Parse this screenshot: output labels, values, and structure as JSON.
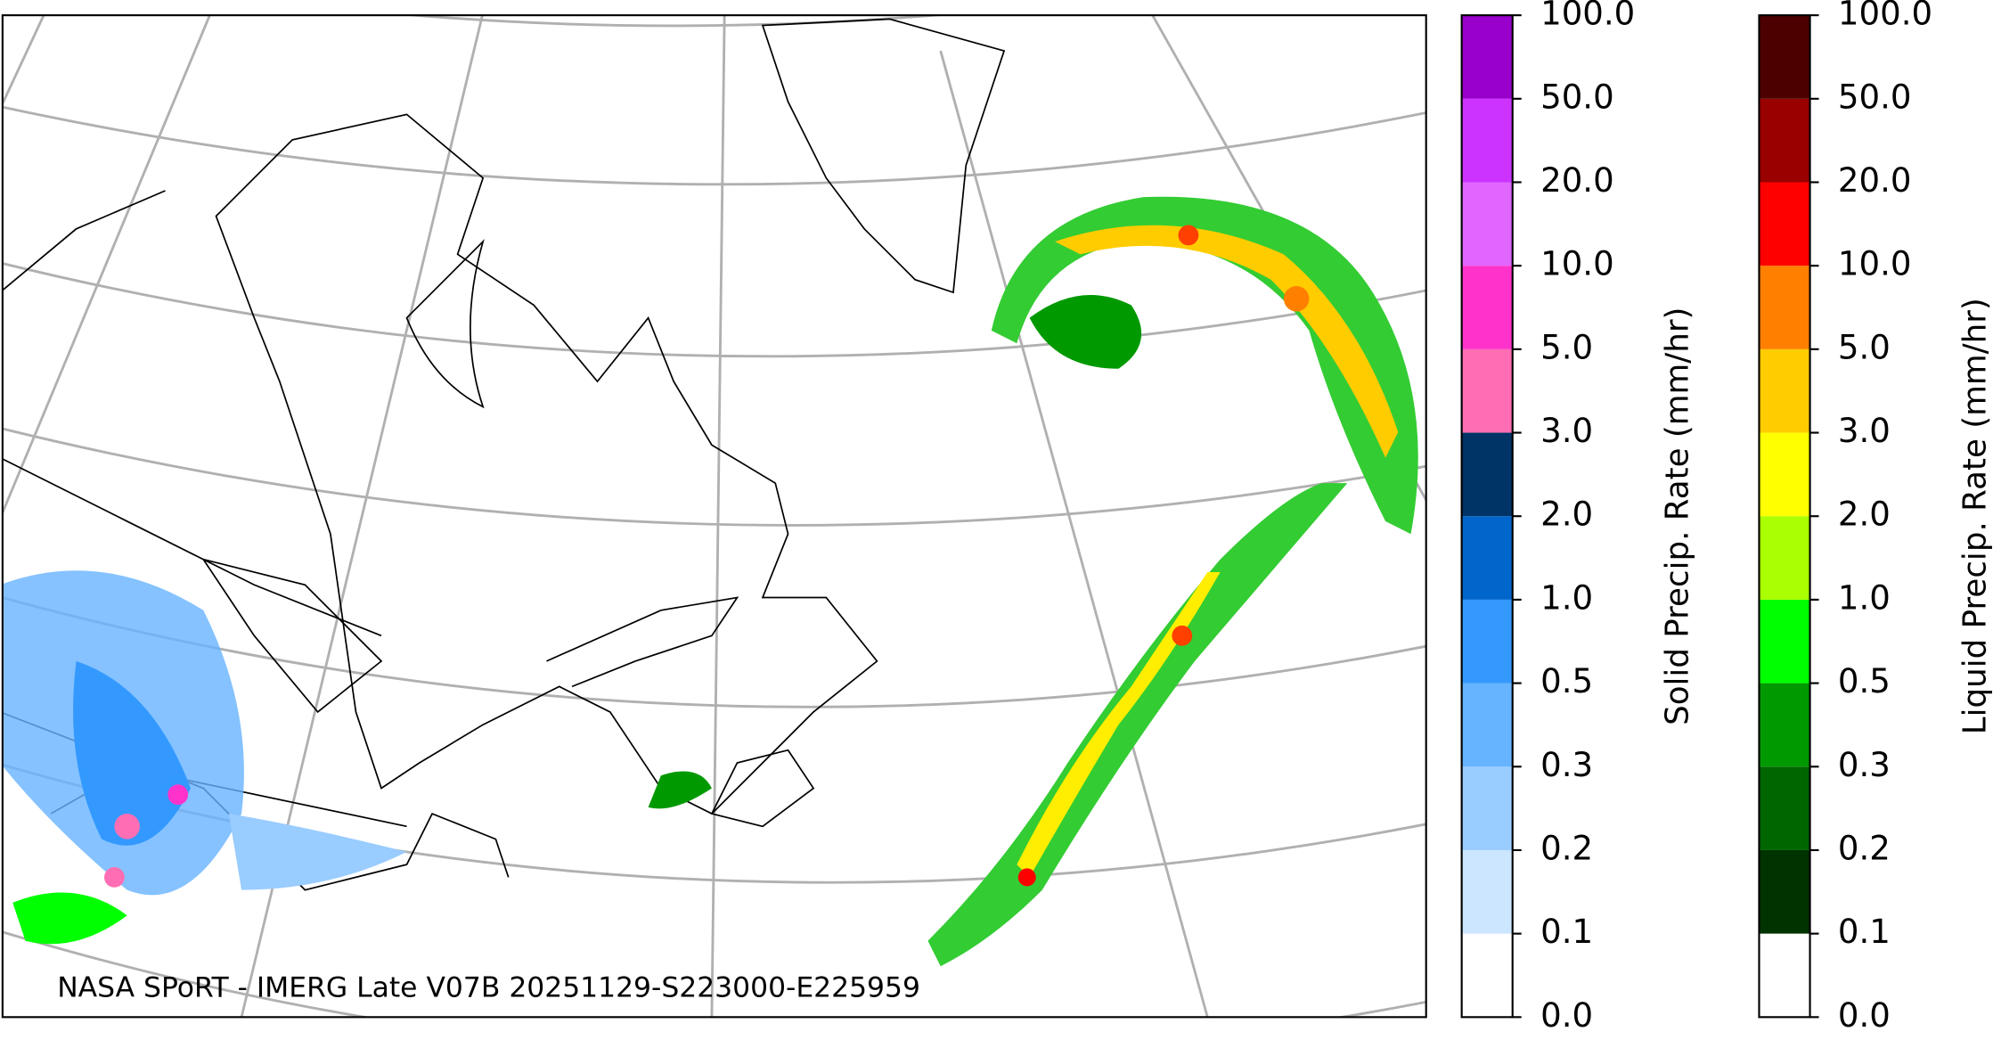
{
  "map": {
    "annotation": "NASA SPoRT - IMERG Late V07B 20251129-S223000-E225959"
  },
  "colorbars": [
    {
      "label": "Solid Precip. Rate (mm/hr)",
      "ticks": [
        {
          "value": 0,
          "label": "0.0"
        },
        {
          "value": 0.1,
          "label": "0.1"
        },
        {
          "value": 0.2,
          "label": "0.2"
        },
        {
          "value": 0.3,
          "label": "0.3"
        },
        {
          "value": 0.5,
          "label": "0.5"
        },
        {
          "value": 1,
          "label": "1.0"
        },
        {
          "value": 2,
          "label": "2.0"
        },
        {
          "value": 3,
          "label": "3.0"
        },
        {
          "value": 5,
          "label": "5.0"
        },
        {
          "value": 10,
          "label": "10.0"
        },
        {
          "value": 20,
          "label": "20.0"
        },
        {
          "value": 50,
          "label": "50.0"
        },
        {
          "value": 100,
          "label": "100.0"
        }
      ],
      "colors": [
        "#ffffff",
        "#cce6ff",
        "#99ccff",
        "#66b3ff",
        "#3399ff",
        "#0066cc",
        "#003366",
        "#ff6eb4",
        "#ff33cc",
        "#e066ff",
        "#cc33ff",
        "#9900cc"
      ]
    },
    {
      "label": "Liquid Precip. Rate (mm/hr)",
      "ticks": [
        {
          "value": 0,
          "label": "0.0"
        },
        {
          "value": 0.1,
          "label": "0.1"
        },
        {
          "value": 0.2,
          "label": "0.2"
        },
        {
          "value": 0.3,
          "label": "0.3"
        },
        {
          "value": 0.5,
          "label": "0.5"
        },
        {
          "value": 1,
          "label": "1.0"
        },
        {
          "value": 2,
          "label": "2.0"
        },
        {
          "value": 3,
          "label": "3.0"
        },
        {
          "value": 5,
          "label": "5.0"
        },
        {
          "value": 10,
          "label": "10.0"
        },
        {
          "value": 20,
          "label": "20.0"
        },
        {
          "value": 50,
          "label": "50.0"
        },
        {
          "value": 100,
          "label": "100.0"
        }
      ],
      "colors": [
        "#ffffff",
        "#003300",
        "#006600",
        "#009900",
        "#00ff00",
        "#aaff00",
        "#ffff00",
        "#ffcc00",
        "#ff8000",
        "#ff0000",
        "#990000",
        "#4d0000"
      ]
    }
  ]
}
